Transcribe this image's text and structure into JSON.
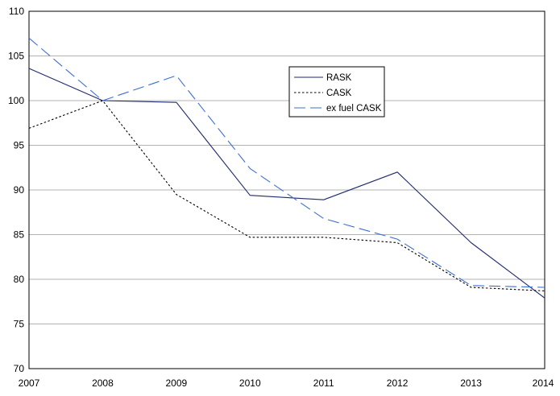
{
  "chart_data": {
    "type": "line",
    "title": "",
    "xlabel": "",
    "ylabel": "",
    "x": [
      "2007",
      "2008",
      "2009",
      "2010",
      "2011",
      "2012",
      "2013",
      "2014"
    ],
    "ylim": [
      70,
      110
    ],
    "yticks": [
      70,
      75,
      80,
      85,
      90,
      95,
      100,
      105,
      110
    ],
    "grid": "horizontal",
    "legend_position": "top-center-right",
    "series": [
      {
        "name": "RASK",
        "values": [
          103.6,
          100.0,
          99.8,
          89.4,
          88.9,
          92.0,
          84.1,
          77.9
        ],
        "color": "#1f2a6e",
        "dash": "solid"
      },
      {
        "name": "CASK",
        "values": [
          96.9,
          100.0,
          89.5,
          84.7,
          84.7,
          84.1,
          79.1,
          78.7
        ],
        "color": "#000000",
        "dash": "dotted"
      },
      {
        "name": "ex fuel CASK",
        "values": [
          107.0,
          100.0,
          102.8,
          92.4,
          86.8,
          84.5,
          79.3,
          79.1
        ],
        "color": "#3d6fd0",
        "dash": "dashed"
      }
    ]
  }
}
